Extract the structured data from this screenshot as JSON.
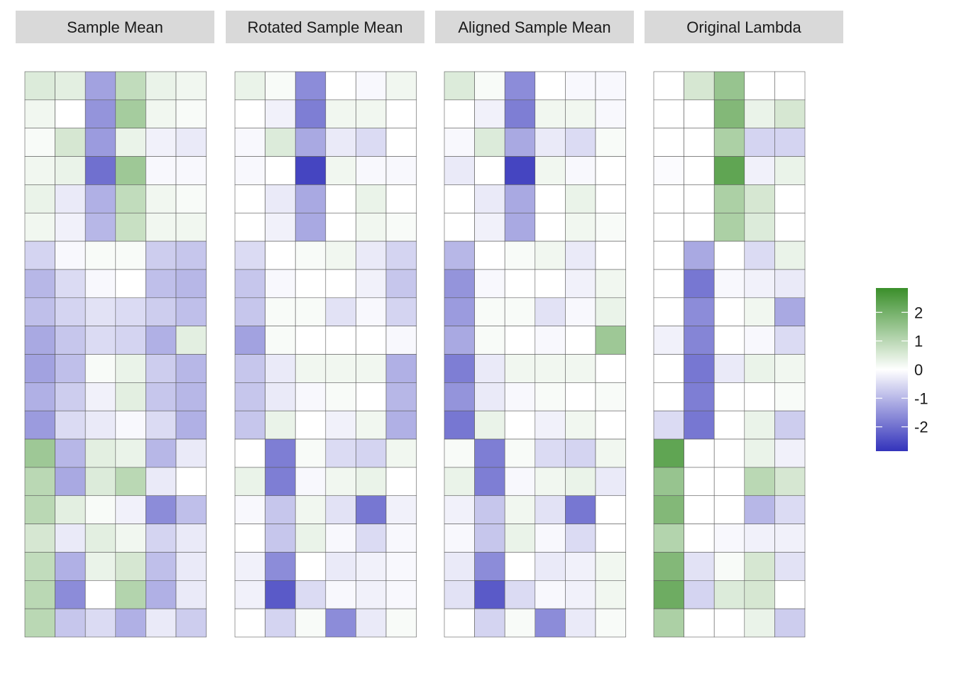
{
  "chart_data": {
    "type": "heatmap",
    "colorscale": {
      "low": "#3333BB",
      "mid": "#FFFFFF",
      "high": "#3A8F2A",
      "limits": [
        -2.85,
        2.85
      ]
    },
    "legend": {
      "position": "right",
      "ticks": [
        2,
        1,
        0,
        -1,
        -2
      ],
      "tick_labels": [
        "2",
        "1",
        "0",
        "-1",
        "-2"
      ]
    },
    "panels": [
      {
        "title": "Sample Mean",
        "values": [
          [
            0.5,
            0.4,
            -1.3,
            0.9,
            0.3,
            0.2
          ],
          [
            0.2,
            0.0,
            -1.5,
            1.3,
            0.2,
            0.1
          ],
          [
            0.1,
            0.6,
            -1.4,
            0.3,
            -0.2,
            -0.3
          ],
          [
            0.2,
            0.3,
            -2.0,
            1.4,
            -0.1,
            -0.1
          ],
          [
            0.3,
            -0.3,
            -1.1,
            0.9,
            0.2,
            0.1
          ],
          [
            0.2,
            -0.2,
            -1.0,
            0.8,
            0.2,
            0.2
          ],
          [
            -0.6,
            -0.1,
            0.1,
            0.1,
            -0.7,
            -0.8
          ],
          [
            -1.0,
            -0.5,
            -0.1,
            0.0,
            -0.9,
            -1.0
          ],
          [
            -0.9,
            -0.6,
            -0.4,
            -0.5,
            -0.7,
            -0.9
          ],
          [
            -1.2,
            -0.8,
            -0.5,
            -0.6,
            -1.1,
            0.4
          ],
          [
            -1.3,
            -0.9,
            0.1,
            0.3,
            -0.7,
            -1.0
          ],
          [
            -1.1,
            -0.7,
            -0.2,
            0.4,
            -0.8,
            -1.0
          ],
          [
            -1.4,
            -0.5,
            -0.3,
            -0.1,
            -0.5,
            -1.1
          ],
          [
            1.4,
            -1.0,
            0.4,
            0.3,
            -1.0,
            -0.3
          ],
          [
            1.0,
            -1.2,
            0.5,
            1.0,
            -0.3,
            0.0
          ],
          [
            1.0,
            0.4,
            0.1,
            -0.2,
            -1.6,
            -0.9
          ],
          [
            0.6,
            -0.3,
            0.4,
            0.2,
            -0.6,
            -0.3
          ],
          [
            0.9,
            -1.1,
            0.3,
            0.6,
            -0.9,
            -0.3
          ],
          [
            1.0,
            -1.6,
            0.0,
            1.1,
            -1.1,
            -0.3
          ],
          [
            1.0,
            -0.8,
            -0.5,
            -1.1,
            -0.3,
            -0.7
          ]
        ]
      },
      {
        "title": "Rotated Sample Mean",
        "values": [
          [
            0.3,
            0.1,
            -1.6,
            0.0,
            -0.1,
            0.2
          ],
          [
            0.0,
            -0.2,
            -1.8,
            0.2,
            0.2,
            0.0
          ],
          [
            -0.1,
            0.5,
            -1.2,
            -0.3,
            -0.5,
            0.0
          ],
          [
            -0.1,
            0.0,
            -2.6,
            0.2,
            -0.1,
            -0.1
          ],
          [
            0.0,
            -0.3,
            -1.2,
            0.0,
            0.3,
            0.0
          ],
          [
            0.0,
            -0.2,
            -1.2,
            0.0,
            0.2,
            0.1
          ],
          [
            -0.5,
            0.0,
            0.1,
            0.2,
            -0.3,
            -0.6
          ],
          [
            -0.8,
            -0.1,
            0.0,
            0.0,
            -0.2,
            -0.8
          ],
          [
            -0.8,
            0.1,
            0.1,
            -0.4,
            -0.1,
            -0.6
          ],
          [
            -1.3,
            0.1,
            0.0,
            0.0,
            0.0,
            -0.1
          ],
          [
            -0.8,
            -0.3,
            0.2,
            0.2,
            0.2,
            -1.1
          ],
          [
            -0.8,
            -0.3,
            -0.1,
            0.1,
            0.0,
            -1.0
          ],
          [
            -0.8,
            0.3,
            0.0,
            -0.2,
            0.2,
            -1.1
          ],
          [
            0.0,
            -1.8,
            0.1,
            -0.5,
            -0.6,
            0.2
          ],
          [
            0.3,
            -1.8,
            -0.1,
            0.2,
            0.3,
            0.0
          ],
          [
            -0.1,
            -0.8,
            0.2,
            -0.4,
            -1.9,
            -0.2
          ],
          [
            0.0,
            -0.8,
            0.3,
            -0.1,
            -0.5,
            -0.1
          ],
          [
            -0.2,
            -1.6,
            0.0,
            -0.3,
            -0.2,
            -0.1
          ],
          [
            -0.2,
            -2.3,
            -0.5,
            -0.1,
            -0.2,
            -0.1
          ],
          [
            0.0,
            -0.6,
            0.1,
            -1.6,
            -0.3,
            0.1
          ]
        ]
      },
      {
        "title": "Aligned Sample Mean",
        "values": [
          [
            0.5,
            0.1,
            -1.6,
            0.0,
            -0.1,
            -0.1
          ],
          [
            0.0,
            -0.2,
            -1.8,
            0.2,
            0.2,
            -0.1
          ],
          [
            -0.1,
            0.5,
            -1.2,
            -0.3,
            -0.5,
            0.1
          ],
          [
            -0.3,
            0.0,
            -2.6,
            0.2,
            -0.1,
            0.0
          ],
          [
            0.0,
            -0.3,
            -1.2,
            0.0,
            0.3,
            0.0
          ],
          [
            0.0,
            -0.2,
            -1.2,
            0.0,
            0.2,
            0.1
          ],
          [
            -1.0,
            0.0,
            0.1,
            0.2,
            -0.3,
            0.0
          ],
          [
            -1.5,
            -0.1,
            0.0,
            0.0,
            -0.2,
            0.2
          ],
          [
            -1.4,
            0.1,
            0.1,
            -0.4,
            -0.1,
            0.3
          ],
          [
            -1.2,
            0.1,
            0.0,
            -0.1,
            0.0,
            1.4
          ],
          [
            -1.8,
            -0.3,
            0.2,
            0.2,
            0.2,
            0.0
          ],
          [
            -1.5,
            -0.3,
            -0.1,
            0.1,
            0.0,
            0.1
          ],
          [
            -1.9,
            0.3,
            0.0,
            -0.2,
            0.2,
            0.0
          ],
          [
            0.1,
            -1.8,
            0.1,
            -0.5,
            -0.6,
            0.2
          ],
          [
            0.3,
            -1.8,
            -0.1,
            0.2,
            0.3,
            -0.3
          ],
          [
            -0.2,
            -0.8,
            0.2,
            -0.4,
            -1.9,
            0.0
          ],
          [
            -0.1,
            -0.8,
            0.3,
            -0.1,
            -0.5,
            0.0
          ],
          [
            -0.3,
            -1.6,
            0.0,
            -0.3,
            -0.2,
            0.2
          ],
          [
            -0.4,
            -2.3,
            -0.5,
            -0.1,
            -0.2,
            0.2
          ],
          [
            0.0,
            -0.6,
            0.1,
            -1.6,
            -0.3,
            0.1
          ]
        ]
      },
      {
        "title": "Original Lambda",
        "values": [
          [
            0.0,
            0.6,
            1.5,
            0.0,
            0.0
          ],
          [
            0.0,
            0.0,
            1.8,
            0.3,
            0.6
          ],
          [
            0.0,
            0.0,
            1.2,
            -0.6,
            -0.6
          ],
          [
            -0.05,
            0.0,
            2.3,
            -0.2,
            0.3
          ],
          [
            0.0,
            0.0,
            1.2,
            0.6,
            0.0
          ],
          [
            0.0,
            0.0,
            1.2,
            0.5,
            0.0
          ],
          [
            0.0,
            -1.2,
            0.0,
            -0.5,
            0.3
          ],
          [
            0.0,
            -1.9,
            -0.1,
            -0.2,
            -0.3
          ],
          [
            0.0,
            -1.6,
            0.0,
            0.2,
            -1.2
          ],
          [
            -0.2,
            -1.7,
            0.0,
            -0.1,
            -0.5
          ],
          [
            0.0,
            -1.9,
            -0.3,
            0.3,
            0.2
          ],
          [
            0.0,
            -1.8,
            0.0,
            0.0,
            0.1
          ],
          [
            -0.5,
            -1.9,
            0.0,
            0.3,
            -0.7
          ],
          [
            2.3,
            0.0,
            0.0,
            0.3,
            -0.2
          ],
          [
            1.5,
            0.0,
            0.0,
            1.0,
            0.6
          ],
          [
            1.8,
            0.0,
            0.0,
            -1.0,
            -0.5
          ],
          [
            1.1,
            0.0,
            -0.1,
            -0.2,
            -0.2
          ],
          [
            1.8,
            -0.4,
            0.1,
            0.6,
            -0.4
          ],
          [
            2.1,
            -0.6,
            0.5,
            0.6,
            0.0
          ],
          [
            1.2,
            0.0,
            0.0,
            0.3,
            -0.7
          ]
        ]
      }
    ]
  }
}
